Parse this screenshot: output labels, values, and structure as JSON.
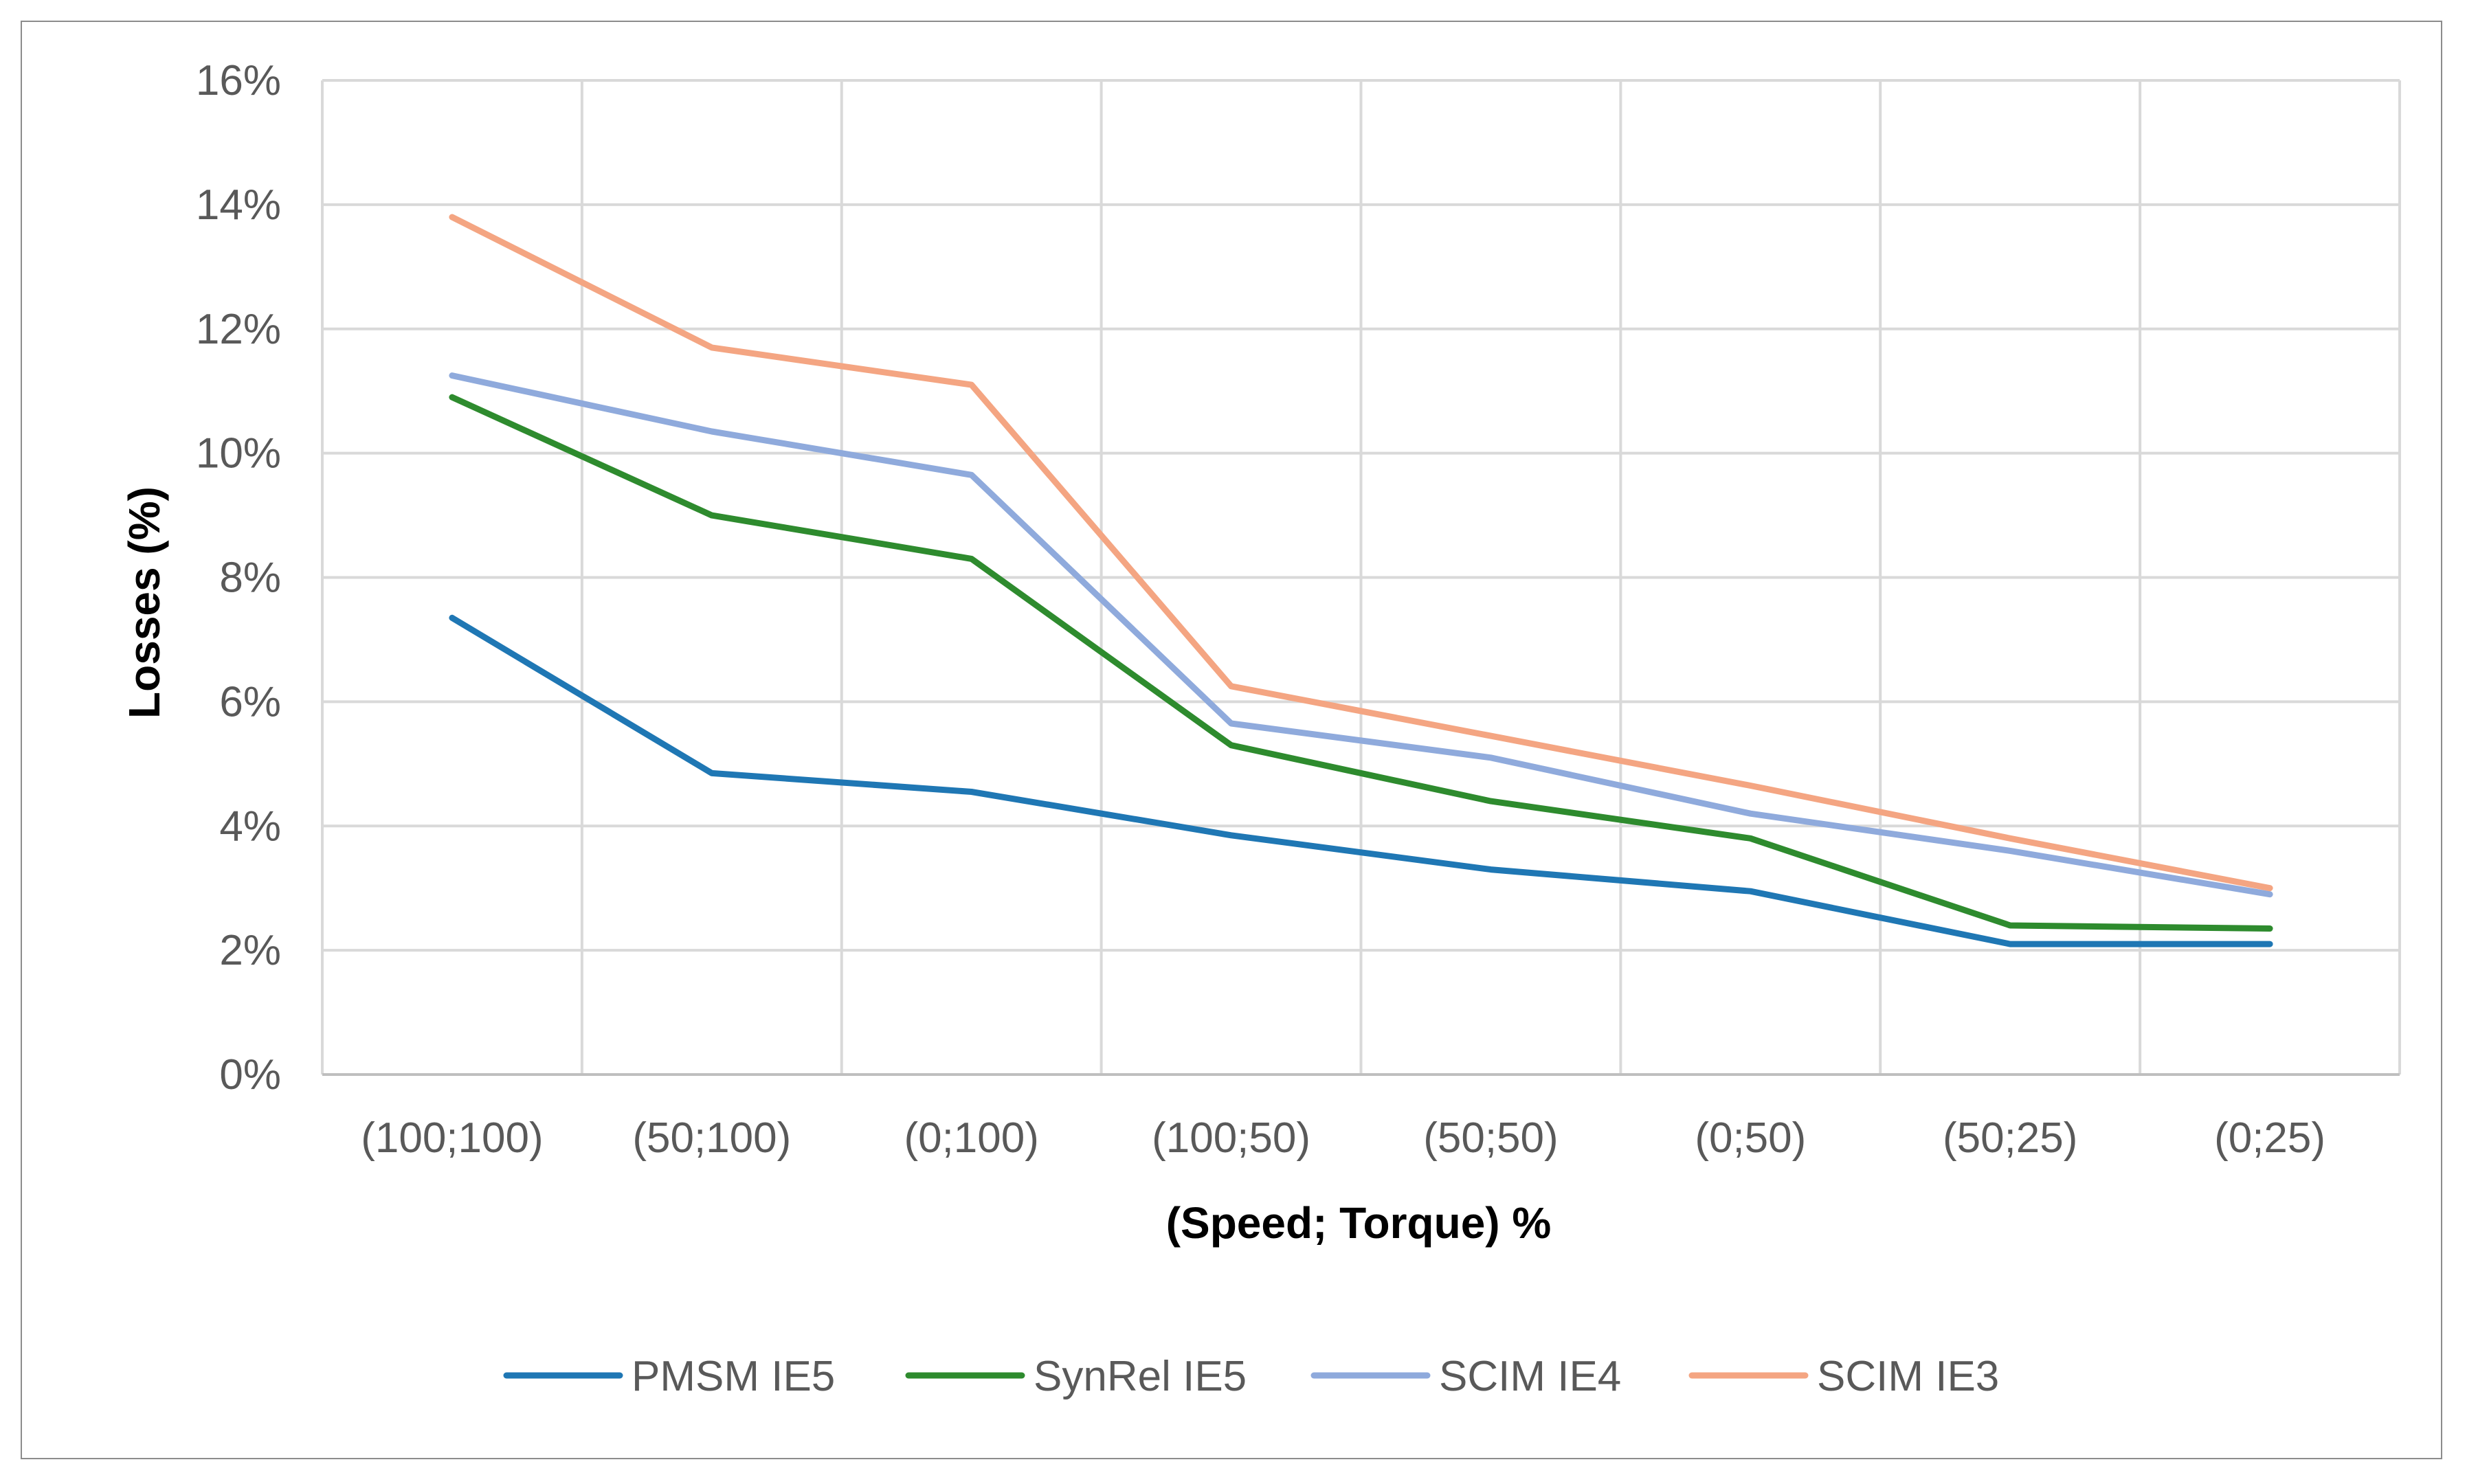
{
  "chart_data": {
    "type": "line",
    "title": "",
    "xlabel": "(Speed; Torque) %",
    "ylabel": "Losses (%)",
    "categories": [
      "(100;100)",
      "(50;100)",
      "(0;100)",
      "(100;50)",
      "(50;50)",
      "(0;50)",
      "(50;25)",
      "(0;25)"
    ],
    "ylim": [
      0,
      16
    ],
    "yticks": [
      0,
      2,
      4,
      6,
      8,
      10,
      12,
      14,
      16
    ],
    "ytick_labels": [
      "0%",
      "2%",
      "4%",
      "6%",
      "8%",
      "10%",
      "12%",
      "14%",
      "16%"
    ],
    "grid": true,
    "legend_position": "bottom-center",
    "series": [
      {
        "name": "PMSM IE5",
        "color": "#1f77b4",
        "values": [
          7.35,
          4.85,
          4.55,
          3.85,
          3.3,
          2.95,
          2.1,
          2.1
        ]
      },
      {
        "name": "SynRel IE5",
        "color": "#2e8b2e",
        "values": [
          10.9,
          9.0,
          8.3,
          5.3,
          4.4,
          3.8,
          2.4,
          2.35
        ]
      },
      {
        "name": "SCIM IE4",
        "color": "#8faadc",
        "values": [
          11.25,
          10.35,
          9.65,
          5.65,
          5.1,
          4.2,
          3.6,
          2.9
        ]
      },
      {
        "name": "SCIM IE3",
        "color": "#f4a582",
        "values": [
          13.8,
          11.7,
          11.1,
          6.25,
          5.45,
          4.65,
          3.8,
          3.0
        ]
      }
    ]
  }
}
